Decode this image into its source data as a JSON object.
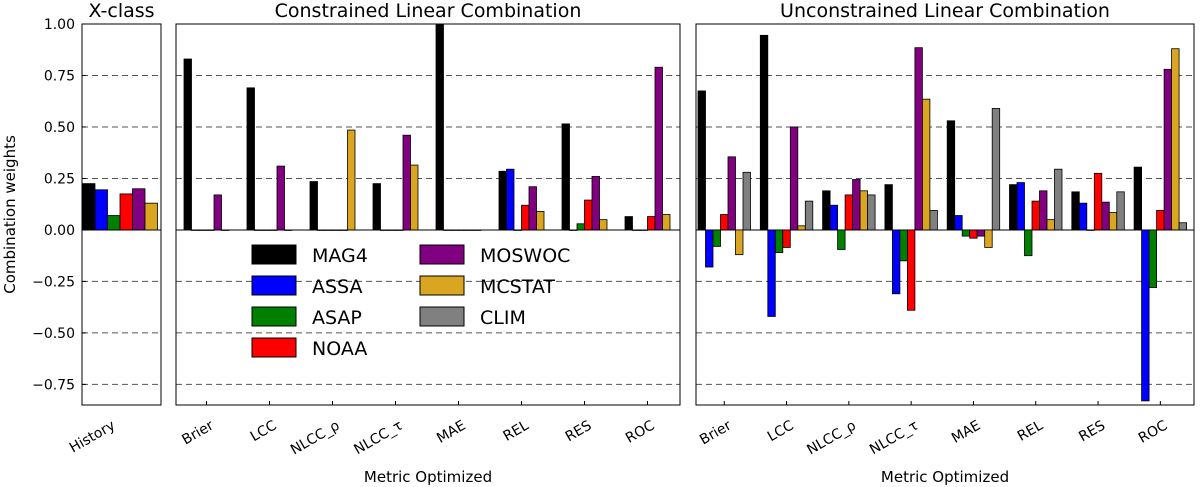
{
  "chart_data": [
    {
      "type": "bar",
      "title": "X-class",
      "title_color": "#0000ff",
      "ylabel": "Combination weights",
      "xlabel": "",
      "ylim": [
        -0.85,
        1.0
      ],
      "yticks": [
        "1.00",
        "0.75",
        "0.50",
        "0.25",
        "0.00",
        "−0.25",
        "−0.50",
        "−0.75"
      ],
      "ytick_values": [
        1.0,
        0.75,
        0.5,
        0.25,
        0.0,
        -0.25,
        -0.5,
        -0.75
      ],
      "grid": "dashed-horizontal",
      "categories": [
        "History"
      ],
      "series": [
        {
          "name": "MAG4",
          "color": "#000000",
          "values": [
            0.225
          ]
        },
        {
          "name": "ASSA",
          "color": "#0000ff",
          "values": [
            0.195
          ]
        },
        {
          "name": "ASAP",
          "color": "#008000",
          "values": [
            0.07
          ]
        },
        {
          "name": "NOAA",
          "color": "#ff0000",
          "values": [
            0.175
          ]
        },
        {
          "name": "MOSWOC",
          "color": "#800080",
          "values": [
            0.2
          ]
        },
        {
          "name": "MCSTAT",
          "color": "#daa520",
          "values": [
            0.13
          ]
        }
      ]
    },
    {
      "type": "bar",
      "title": "Constrained Linear Combination",
      "xlabel": "Metric Optimized",
      "ylim": [
        -0.85,
        1.0
      ],
      "grid": "dashed-horizontal",
      "legend": "lower-left",
      "categories": [
        "Brier",
        "LCC",
        "NLCC_ρ",
        "NLCC_τ",
        "MAE",
        "REL",
        "RES",
        "ROC"
      ],
      "series": [
        {
          "name": "MAG4",
          "color": "#000000",
          "values": [
            0.83,
            0.69,
            0.235,
            0.225,
            1.0,
            0.285,
            0.515,
            0.065
          ]
        },
        {
          "name": "ASSA",
          "color": "#0000ff",
          "values": [
            0,
            0,
            0,
            0,
            0,
            0.295,
            0,
            0
          ]
        },
        {
          "name": "ASAP",
          "color": "#008000",
          "values": [
            0,
            0,
            0,
            0,
            0,
            0,
            0.03,
            0
          ]
        },
        {
          "name": "NOAA",
          "color": "#ff0000",
          "values": [
            0,
            0,
            0,
            0,
            0,
            0.12,
            0.145,
            0.065
          ]
        },
        {
          "name": "MOSWOC",
          "color": "#800080",
          "values": [
            0.17,
            0.31,
            0,
            0.46,
            0,
            0.21,
            0.26,
            0.79
          ]
        },
        {
          "name": "MCSTAT",
          "color": "#daa520",
          "values": [
            0,
            0,
            0.485,
            0.315,
            0,
            0.09,
            0.05,
            0.075
          ]
        }
      ]
    },
    {
      "type": "bar",
      "title": "Unconstrained Linear Combination",
      "xlabel": "Metric Optimized",
      "ylim": [
        -0.85,
        1.0
      ],
      "grid": "dashed-horizontal",
      "categories": [
        "Brier",
        "LCC",
        "NLCC_ρ",
        "NLCC_τ",
        "MAE",
        "REL",
        "RES",
        "ROC"
      ],
      "series": [
        {
          "name": "MAG4",
          "color": "#000000",
          "values": [
            0.675,
            0.945,
            0.19,
            0.22,
            0.53,
            0.22,
            0.185,
            0.305
          ]
        },
        {
          "name": "ASSA",
          "color": "#0000ff",
          "values": [
            -0.18,
            -0.42,
            0.12,
            -0.31,
            0.07,
            0.23,
            0.13,
            -0.83
          ]
        },
        {
          "name": "ASAP",
          "color": "#008000",
          "values": [
            -0.08,
            -0.11,
            -0.095,
            -0.15,
            -0.03,
            -0.125,
            0,
            -0.28
          ]
        },
        {
          "name": "NOAA",
          "color": "#ff0000",
          "values": [
            0.075,
            -0.085,
            0.17,
            -0.39,
            -0.04,
            0.14,
            0.275,
            0.095
          ]
        },
        {
          "name": "MOSWOC",
          "color": "#800080",
          "values": [
            0.355,
            0.5,
            0.245,
            0.885,
            -0.03,
            0.19,
            0.135,
            0.78
          ]
        },
        {
          "name": "MCSTAT",
          "color": "#daa520",
          "values": [
            -0.12,
            0.02,
            0.19,
            0.635,
            -0.085,
            0.05,
            0.085,
            0.88
          ]
        },
        {
          "name": "CLIM",
          "color": "#808080",
          "values": [
            0.28,
            0.14,
            0.17,
            0.095,
            0.59,
            0.295,
            0.185,
            0.035
          ]
        }
      ]
    }
  ],
  "legend": [
    {
      "label": "MAG4",
      "color": "#000000"
    },
    {
      "label": "ASSA",
      "color": "#0000ff"
    },
    {
      "label": "ASAP",
      "color": "#008000"
    },
    {
      "label": "NOAA",
      "color": "#ff0000"
    },
    {
      "label": "MOSWOC",
      "color": "#800080"
    },
    {
      "label": "MCSTAT",
      "color": "#daa520"
    },
    {
      "label": "CLIM",
      "color": "#808080"
    }
  ]
}
